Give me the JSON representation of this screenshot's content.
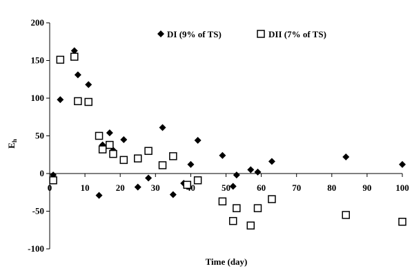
{
  "chart_data": {
    "type": "scatter",
    "title": "",
    "xlabel": "Time (day)",
    "ylabel": "E",
    "ylabel_sub": "h",
    "xlim": [
      0,
      100
    ],
    "ylim": [
      -100,
      200
    ],
    "xticks": [
      0,
      10,
      20,
      30,
      40,
      50,
      60,
      70,
      80,
      90,
      100
    ],
    "yticks": [
      -100,
      -50,
      0,
      50,
      100,
      150,
      200
    ],
    "grid": false,
    "legend_position": "top-right",
    "series": [
      {
        "name": "DI (9% of TS)",
        "marker": "filled-diamond",
        "color": "#000000",
        "x": [
          1,
          3,
          7,
          8,
          11,
          14,
          15,
          17,
          18,
          21,
          25,
          28,
          32,
          35,
          38,
          40,
          42,
          49,
          52,
          53,
          57,
          59,
          63,
          84,
          100
        ],
        "y": [
          -2,
          98,
          163,
          131,
          118,
          -29,
          38,
          54,
          31,
          45,
          -18,
          -6,
          61,
          -28,
          -13,
          12,
          44,
          24,
          -17,
          -2,
          5,
          2,
          16,
          22,
          12
        ]
      },
      {
        "name": "DII (7% of TS)",
        "marker": "open-square",
        "color": "#000000",
        "x": [
          1,
          3,
          7,
          8,
          11,
          14,
          15,
          17,
          18,
          21,
          25,
          28,
          32,
          35,
          39,
          42,
          49,
          52,
          53,
          57,
          59,
          63,
          84,
          100
        ],
        "y": [
          -9,
          151,
          155,
          96,
          95,
          50,
          32,
          38,
          26,
          18,
          20,
          30,
          11,
          23,
          -15,
          -9,
          -37,
          -63,
          -46,
          -69,
          -46,
          -34,
          -55,
          -64
        ]
      }
    ]
  }
}
